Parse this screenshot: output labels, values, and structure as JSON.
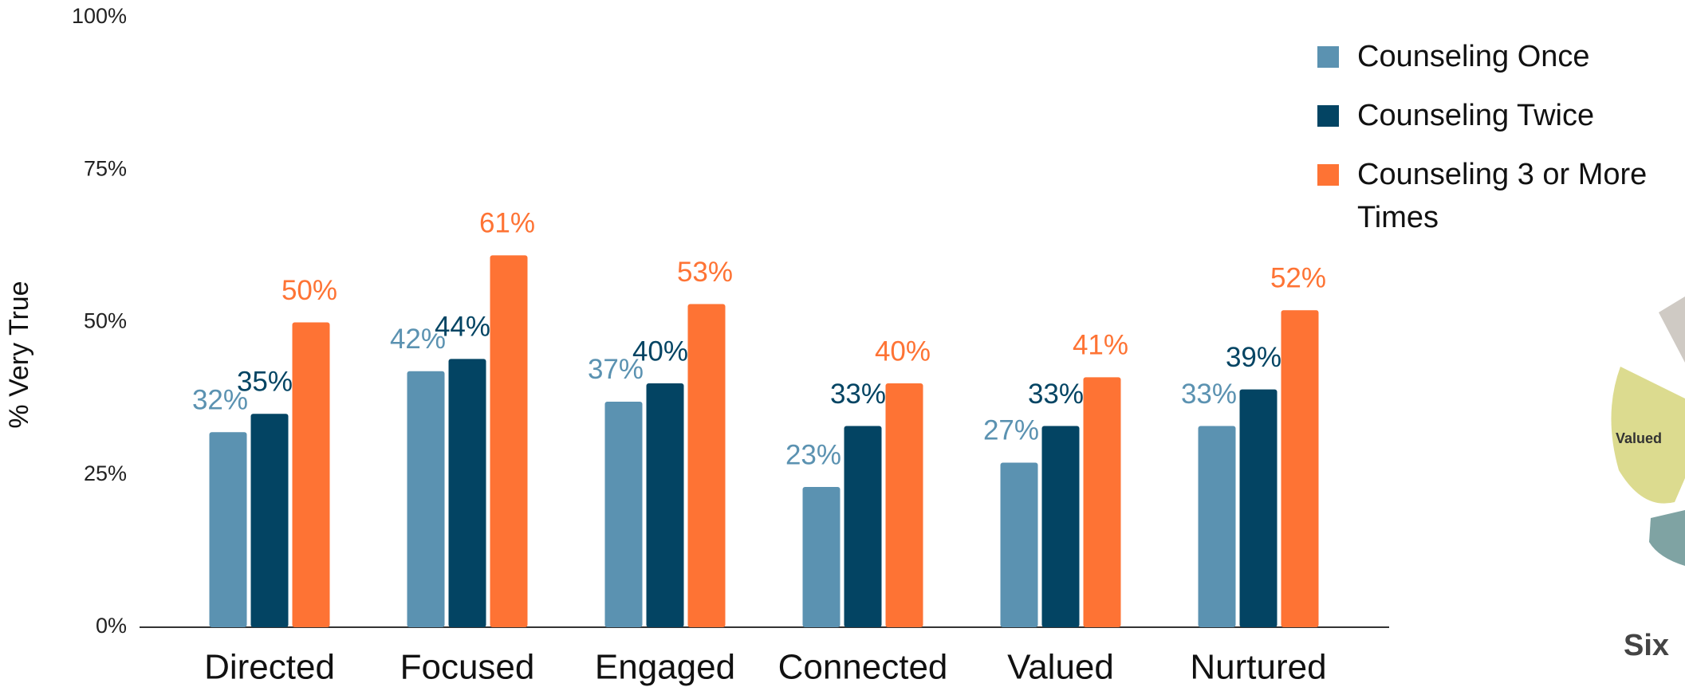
{
  "chart_data": {
    "type": "bar",
    "y_axis_label": "% Very True",
    "categories": [
      "Directed",
      "Focused",
      "Engaged",
      "Connected",
      "Valued",
      "Nurtured"
    ],
    "series": [
      {
        "name": "Counseling Once",
        "color": "#5b92b1",
        "values": [
          32,
          42,
          37,
          23,
          27,
          33
        ],
        "value_labels": [
          "32%",
          "42%",
          "37%",
          "23%",
          "27%",
          "33%"
        ]
      },
      {
        "name": "Counseling Twice",
        "color": "#034463",
        "values": [
          35,
          44,
          40,
          33,
          33,
          39
        ],
        "value_labels": [
          "35%",
          "44%",
          "40%",
          "33%",
          "33%",
          "39%"
        ]
      },
      {
        "name": "Counseling 3 or More Times",
        "color": "#fe7334",
        "values": [
          50,
          61,
          53,
          40,
          41,
          52
        ],
        "value_labels": [
          "50%",
          "61%",
          "53%",
          "40%",
          "41%",
          "52%"
        ]
      }
    ],
    "ylim": [
      0,
      100
    ],
    "yticks": [
      {
        "value": 0,
        "label": "0%"
      },
      {
        "value": 25,
        "label": "25%"
      },
      {
        "value": 50,
        "label": "50%"
      },
      {
        "value": 75,
        "label": "75%"
      },
      {
        "value": 100,
        "label": "100%"
      }
    ],
    "grid": false,
    "legend": "top-right"
  },
  "side_graphic": {
    "segment_label": "Valued",
    "caption": "Six"
  }
}
